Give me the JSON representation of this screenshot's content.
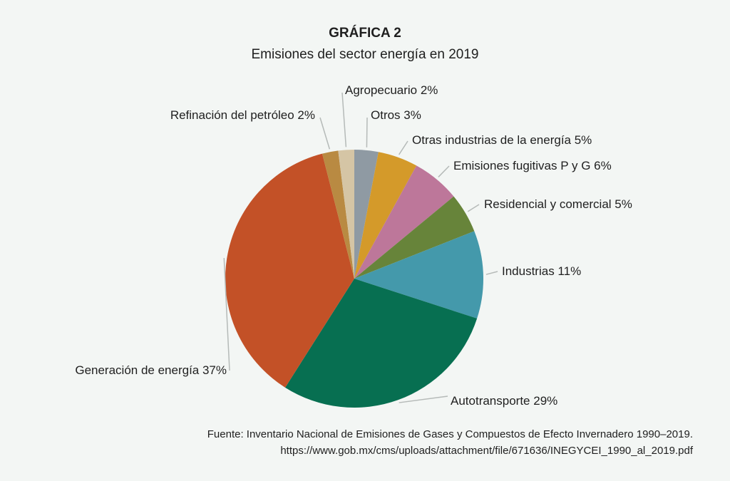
{
  "chart_data": {
    "type": "pie",
    "title": "GRÁFICA 2",
    "subtitle": "Emisiones del sector energía en 2019",
    "slices": [
      {
        "label": "Otros 3%",
        "name": "Otros",
        "value": 3,
        "color": "#8f9aa3"
      },
      {
        "label": "Otras industrias de la energía 5%",
        "name": "Otras industrias de la energía",
        "value": 5,
        "color": "#d49a2a"
      },
      {
        "label": "Emisiones fugitivas P y G 6%",
        "name": "Emisiones fugitivas P y G",
        "value": 6,
        "color": "#bd779a"
      },
      {
        "label": "Residencial y comercial 5%",
        "name": "Residencial y comercial",
        "value": 5,
        "color": "#67843a"
      },
      {
        "label": "Industrias 11%",
        "name": "Industrias",
        "value": 11,
        "color": "#4499ab"
      },
      {
        "label": "Autotransporte 29%",
        "name": "Autotransporte",
        "value": 29,
        "color": "#076f51"
      },
      {
        "label": "Generación de energía 37%",
        "name": "Generación de energía",
        "value": 37,
        "color": "#c35127"
      },
      {
        "label": "Refinación del petróleo 2%",
        "name": "Refinación del petróleo",
        "value": 2,
        "color": "#b98a42"
      },
      {
        "label": "Agropecuario 2%",
        "name": "Agropecuario",
        "value": 2,
        "color": "#d5c5a5"
      }
    ]
  },
  "source": {
    "line1": "Fuente: Inventario Nacional de Emisiones de Gases y Compuestos de Efecto Invernadero 1990–2019.",
    "line2": "https://www.gob.mx/cms/uploads/attachment/file/671636/INEGYCEI_1990_al_2019.pdf"
  }
}
